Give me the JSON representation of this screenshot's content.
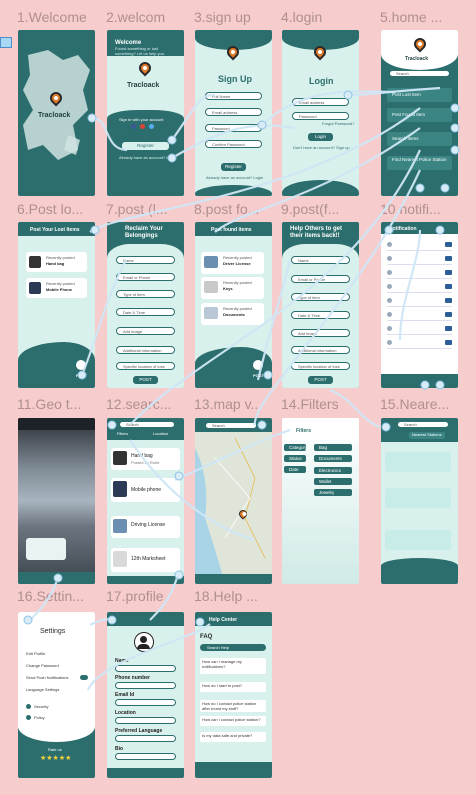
{
  "frames": [
    {
      "id": "welcome",
      "label": "1.Welcome"
    },
    {
      "id": "welcome2",
      "label": "2.welcom"
    },
    {
      "id": "signup",
      "label": "3.sign up"
    },
    {
      "id": "login",
      "label": "4.login"
    },
    {
      "id": "home",
      "label": "5.home ..."
    },
    {
      "id": "postlost",
      "label": "6.Post lo..."
    },
    {
      "id": "postl",
      "label": "7.post (l..."
    },
    {
      "id": "postfo",
      "label": "8.post fo..."
    },
    {
      "id": "postf",
      "label": "9.post(f..."
    },
    {
      "id": "notifi",
      "label": "10.notifi..."
    },
    {
      "id": "geo",
      "label": "11.Geo t..."
    },
    {
      "id": "search",
      "label": "12.searc..."
    },
    {
      "id": "mapv",
      "label": "13.map v..."
    },
    {
      "id": "filters",
      "label": "14.Filters"
    },
    {
      "id": "nearest",
      "label": "15.Neare..."
    },
    {
      "id": "settings",
      "label": "16.Settin..."
    },
    {
      "id": "profile",
      "label": "17.profile"
    },
    {
      "id": "help",
      "label": "18.Help ..."
    }
  ],
  "s1": {
    "brand": "Tracloack"
  },
  "s2": {
    "title": "Welcome",
    "subtitle": "Found something or lost something? Let us help you.",
    "brand": "Tracloack",
    "social_text": "Sign in with your account",
    "register": "Register",
    "foot": "Already have an account? Login"
  },
  "s3": {
    "title": "Sign Up",
    "fields": [
      "Full Name",
      "Email address",
      "Password",
      "Confirm Password"
    ],
    "button": "Register",
    "foot": "Already have an account? Login"
  },
  "s4": {
    "title": "Login",
    "fields": [
      "Email address",
      "Password"
    ],
    "forgot": "Forgot Password?",
    "button": "Login",
    "foot": "Don't have an account? Sign up"
  },
  "s5": {
    "brand": "Tracloack",
    "search": "Search",
    "items": [
      "Post Lost Item",
      "Post Found Item",
      "Search Items",
      "Find Nearest Police Station"
    ]
  },
  "s6": {
    "header": "Post Your Lost Items",
    "cards": [
      {
        "caption": "Recently posted",
        "name": "Hand bag"
      },
      {
        "caption": "Recently posted",
        "name": "Mobile Phone"
      }
    ],
    "cta": "POST"
  },
  "s7": {
    "title": "Reclaim Your Belongings",
    "fields": [
      "Name",
      "Email or Phone",
      "Type of item",
      "Date & Time",
      "Add image",
      "Additional information",
      "Specific location of loss"
    ],
    "button": "POST"
  },
  "s8": {
    "header": "Post found items",
    "cards": [
      {
        "caption": "Recently posted",
        "name": "Driver License"
      },
      {
        "caption": "Recently posted",
        "name": "Keys"
      },
      {
        "caption": "Recently posted",
        "name": "Documents"
      }
    ],
    "cta": "POST"
  },
  "s9": {
    "title": "Help Others to get their items back!!",
    "fields": [
      "Name",
      "Email or Phone",
      "Type of item",
      "Date & Time",
      "Add image",
      "Additional information",
      "Specific location of loss"
    ],
    "button": "POST"
  },
  "s10": {
    "title": "Notification"
  },
  "s12": {
    "search": "Search",
    "filters": "Filters",
    "location": "Location",
    "items": [
      "Hand bag",
      "Mobile phone",
      "Driving License",
      "12th Marksheet"
    ],
    "meta": "Posted by Rohit"
  },
  "s13": {
    "search": "Search"
  },
  "s14": {
    "title": "Filters",
    "left": [
      "Category",
      "Status",
      "Date"
    ],
    "right": [
      "Bag",
      "Documents",
      "Electronics",
      "Wallet",
      "Jewelry"
    ]
  },
  "s15": {
    "search": "Search",
    "header": "Nearest Stations"
  },
  "s16": {
    "title": "Settings",
    "items": [
      "Edit Profile",
      "Change Password",
      "Send Push Notifications",
      "Language Settings"
    ],
    "security": "Security",
    "policy": "Policy",
    "rate": "Rate us",
    "stars": "★★★★★"
  },
  "s17": {
    "labels": [
      "Name",
      "Phone number",
      "Email Id",
      "Location",
      "Preferred Language",
      "Bio"
    ]
  },
  "s18": {
    "title": "Help Center",
    "faq": "FAQ",
    "search": "Search Help",
    "questions": [
      "How can I manage my notifications?",
      "How do I start to post?",
      "How do I contact police station after found my stuff?",
      "How can I contact police station?",
      "Is my data safe and private?"
    ]
  },
  "colors": {
    "background": "#f6cdcc",
    "primary": "#2c6e6d",
    "mint": "#d9f1ec",
    "wire": "#cfe6f6",
    "pin": "#e07b2a"
  }
}
